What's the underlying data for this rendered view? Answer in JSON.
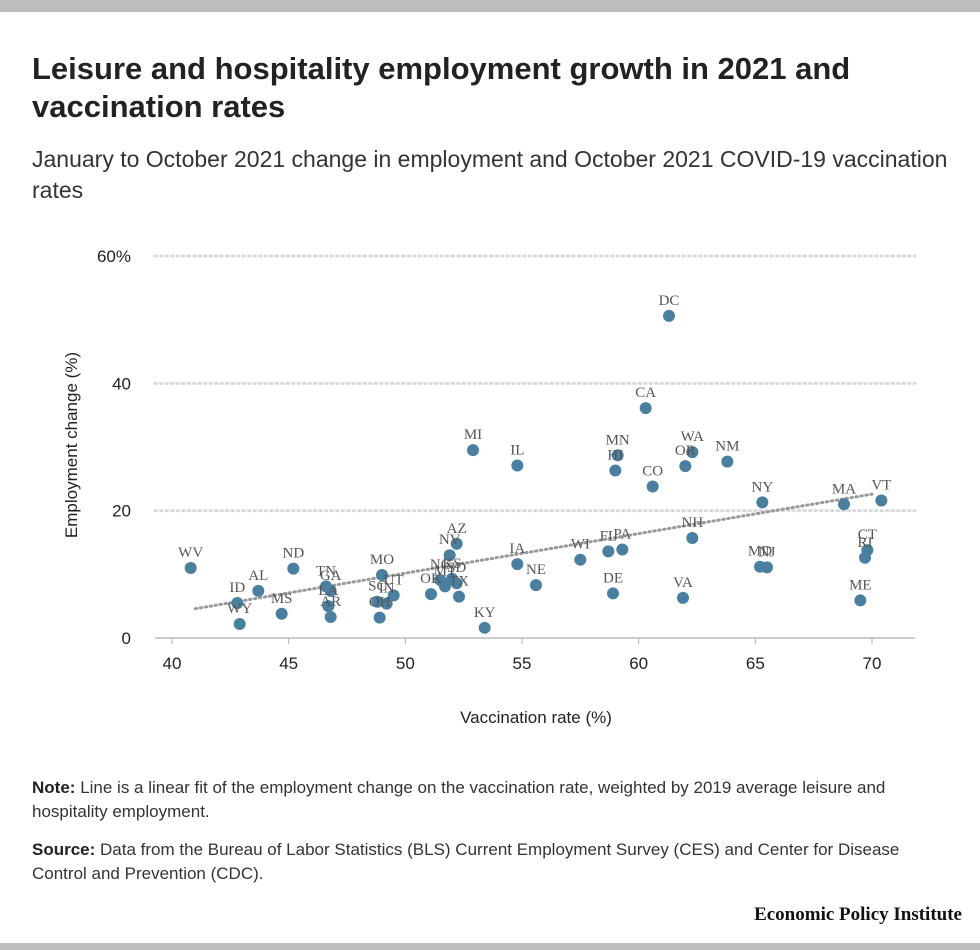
{
  "title": "Leisure and hospitality employment growth in 2021 and vaccination rates",
  "subtitle": "January to October 2021 change in employment and October 2021 COVID-19 vaccination rates",
  "note_label": "Note:",
  "note_text": "Line is a linear fit of the employment change on the vaccination rate, weighted by 2019 average leisure and hospitality employment.",
  "source_label": "Source:",
  "source_text": "Data from the Bureau of Labor Statistics (BLS) Current Employment Survey (CES) and Center for Disease Control and Prevention (CDC).",
  "brand": "Economic Policy Institute",
  "colors": {
    "point": "#4a7fa0",
    "trend": "#999999",
    "grid": "#d9d9d9",
    "axis": "#bbbbbb",
    "label": "#555555"
  },
  "chart_data": {
    "type": "scatter",
    "title": "Leisure and hospitality employment growth in 2021 and vaccination rates",
    "xlabel": "Vaccination rate (%)",
    "ylabel": "Employment change (%)",
    "xlim": [
      40,
      72
    ],
    "ylim": [
      0,
      60
    ],
    "x_ticks": [
      {
        "value": 40,
        "label": "40"
      },
      {
        "value": 45,
        "label": "45"
      },
      {
        "value": 50,
        "label": "50"
      },
      {
        "value": 55,
        "label": "55"
      },
      {
        "value": 60,
        "label": "60"
      },
      {
        "value": 65,
        "label": "65"
      },
      {
        "value": 70,
        "label": "70"
      }
    ],
    "y_ticks": [
      {
        "value": 0,
        "label": "0"
      },
      {
        "value": 20,
        "label": "20"
      },
      {
        "value": 40,
        "label": "40"
      },
      {
        "value": 60,
        "label": "60%"
      }
    ],
    "grid": "horizontal dotted",
    "trendline": {
      "x": [
        41,
        70
      ],
      "y": [
        4.6,
        22.6
      ],
      "style": "dotted",
      "description": "linear fit"
    },
    "points": [
      {
        "label": "WV",
        "x": 40.8,
        "y": 11.0
      },
      {
        "label": "ID",
        "x": 42.8,
        "y": 5.5
      },
      {
        "label": "WY",
        "x": 42.9,
        "y": 2.2
      },
      {
        "label": "AL",
        "x": 43.7,
        "y": 7.4
      },
      {
        "label": "MS",
        "x": 44.7,
        "y": 3.8
      },
      {
        "label": "ND",
        "x": 45.2,
        "y": 10.9
      },
      {
        "label": "TN",
        "x": 46.6,
        "y": 8.1
      },
      {
        "label": "LA",
        "x": 46.7,
        "y": 5.0
      },
      {
        "label": "GA",
        "x": 46.8,
        "y": 7.4
      },
      {
        "label": "AR",
        "x": 46.8,
        "y": 3.3
      },
      {
        "label": "SC",
        "x": 48.8,
        "y": 5.7
      },
      {
        "label": "OH",
        "x": 48.9,
        "y": 3.2
      },
      {
        "label": "MO",
        "x": 49.0,
        "y": 9.9
      },
      {
        "label": "IN",
        "x": 49.2,
        "y": 5.4
      },
      {
        "label": "UT",
        "x": 49.5,
        "y": 6.7
      },
      {
        "label": "OK",
        "x": 51.1,
        "y": 6.9
      },
      {
        "label": "NC",
        "x": 51.5,
        "y": 9.1
      },
      {
        "label": "MT",
        "x": 51.7,
        "y": 8.1
      },
      {
        "label": "NV",
        "x": 51.9,
        "y": 13.0
      },
      {
        "label": "KS",
        "x": 52.0,
        "y": 9.3
      },
      {
        "label": "AZ",
        "x": 52.2,
        "y": 14.8
      },
      {
        "label": "SD",
        "x": 52.2,
        "y": 8.6
      },
      {
        "label": "TX",
        "x": 52.3,
        "y": 6.5
      },
      {
        "label": "MI",
        "x": 52.9,
        "y": 29.5
      },
      {
        "label": "KY",
        "x": 53.4,
        "y": 1.6
      },
      {
        "label": "IA",
        "x": 54.8,
        "y": 11.6
      },
      {
        "label": "IL",
        "x": 54.8,
        "y": 27.1
      },
      {
        "label": "NE",
        "x": 55.6,
        "y": 8.3
      },
      {
        "label": "WI",
        "x": 57.5,
        "y": 12.3
      },
      {
        "label": "FL",
        "x": 58.7,
        "y": 13.6
      },
      {
        "label": "DE",
        "x": 58.9,
        "y": 7.0
      },
      {
        "label": "HI",
        "x": 59.0,
        "y": 26.3
      },
      {
        "label": "MN",
        "x": 59.1,
        "y": 28.7
      },
      {
        "label": "PA",
        "x": 59.3,
        "y": 13.9
      },
      {
        "label": "CA",
        "x": 60.3,
        "y": 36.1
      },
      {
        "label": "CO",
        "x": 60.6,
        "y": 23.8
      },
      {
        "label": "DC",
        "x": 61.3,
        "y": 50.6
      },
      {
        "label": "VA",
        "x": 61.9,
        "y": 6.3
      },
      {
        "label": "OR",
        "x": 62.0,
        "y": 27.0
      },
      {
        "label": "WA",
        "x": 62.3,
        "y": 29.2
      },
      {
        "label": "NH",
        "x": 62.3,
        "y": 15.7
      },
      {
        "label": "NM",
        "x": 63.8,
        "y": 27.7
      },
      {
        "label": "MD",
        "x": 65.2,
        "y": 11.2
      },
      {
        "label": "NY",
        "x": 65.3,
        "y": 21.3
      },
      {
        "label": "NJ",
        "x": 65.5,
        "y": 11.1
      },
      {
        "label": "MA",
        "x": 68.8,
        "y": 21.0
      },
      {
        "label": "ME",
        "x": 69.5,
        "y": 5.9
      },
      {
        "label": "RI",
        "x": 69.7,
        "y": 12.6
      },
      {
        "label": "CT",
        "x": 69.8,
        "y": 13.8
      },
      {
        "label": "VT",
        "x": 70.4,
        "y": 21.6
      }
    ]
  }
}
